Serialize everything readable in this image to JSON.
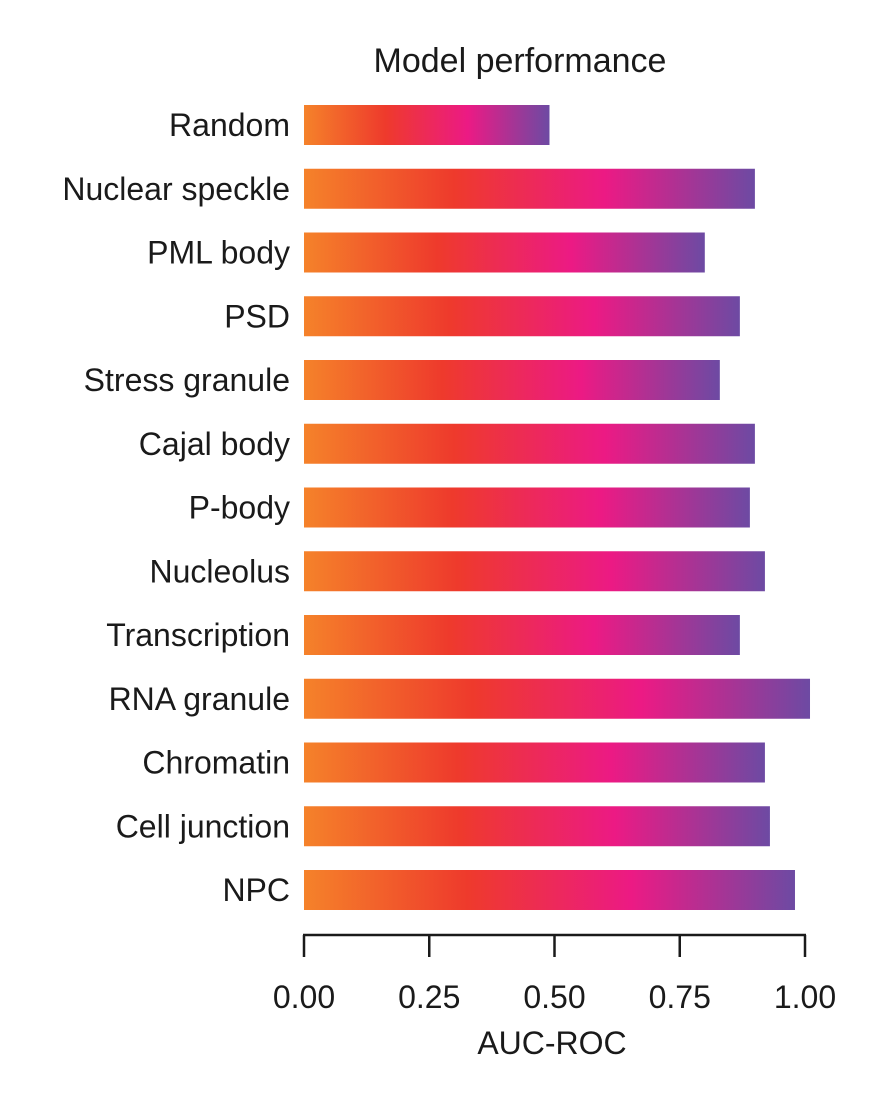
{
  "chart_data": {
    "type": "bar",
    "orientation": "horizontal",
    "title": "Model performance",
    "xlabel": "AUC-ROC",
    "ylabel": "",
    "categories": [
      "Random",
      "Nuclear speckle",
      "PML body",
      "PSD",
      "Stress granule",
      "Cajal body",
      "P-body",
      "Nucleolus",
      "Transcription",
      "RNA granule",
      "Chromatin",
      "Cell junction",
      "NPC"
    ],
    "values": [
      0.49,
      0.9,
      0.8,
      0.87,
      0.83,
      0.9,
      0.89,
      0.92,
      0.87,
      1.01,
      0.92,
      0.93,
      0.98
    ],
    "xlim": [
      0,
      1
    ],
    "xticks": [
      "0.00",
      "0.25",
      "0.50",
      "0.75",
      "1.00"
    ],
    "xtick_values": [
      0,
      0.25,
      0.5,
      0.75,
      1.0
    ],
    "grid": false,
    "legend": "none",
    "bar_gradient": [
      "#f5822a",
      "#ee3a2c",
      "#ec1a84",
      "#6d4aa3"
    ]
  }
}
